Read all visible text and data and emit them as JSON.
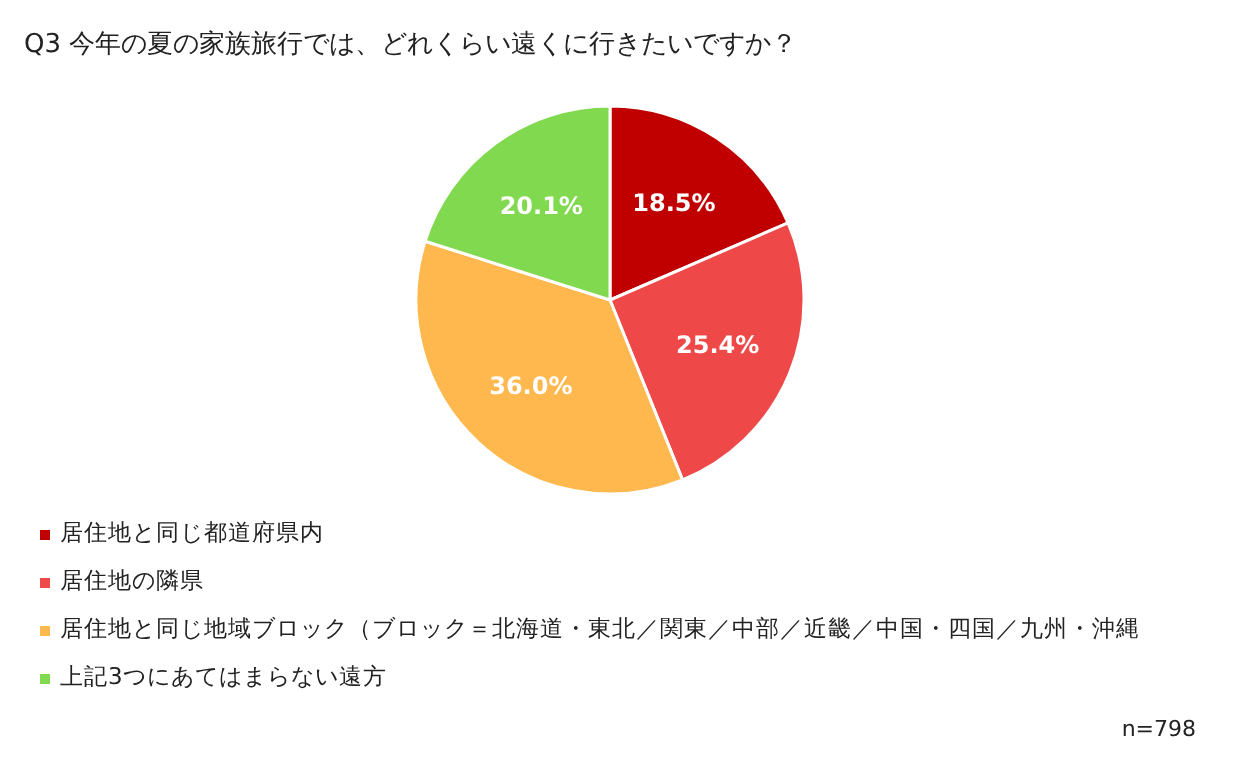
{
  "chart_data": {
    "type": "pie",
    "title": "Q3 今年の夏の家族旅行では、どれくらい遠くに行きたいですか？",
    "categories": [
      "居住地と同じ都道府県内",
      "居住地の隣県",
      "居住地と同じ地域ブロック（ブロック＝北海道・東北／関東／中部／近畿／中国・四国／九州・沖縄",
      "上記3つにあてはまらない遠方"
    ],
    "values": [
      18.5,
      25.4,
      36.0,
      20.1
    ],
    "colors": [
      "#c00000",
      "#ee4848",
      "#ffb84d",
      "#80d94f"
    ],
    "value_labels": [
      "18.5%",
      "25.4%",
      "36.0%",
      "20.1%"
    ],
    "legend": "bottom",
    "annotations": [
      "n=798"
    ]
  }
}
